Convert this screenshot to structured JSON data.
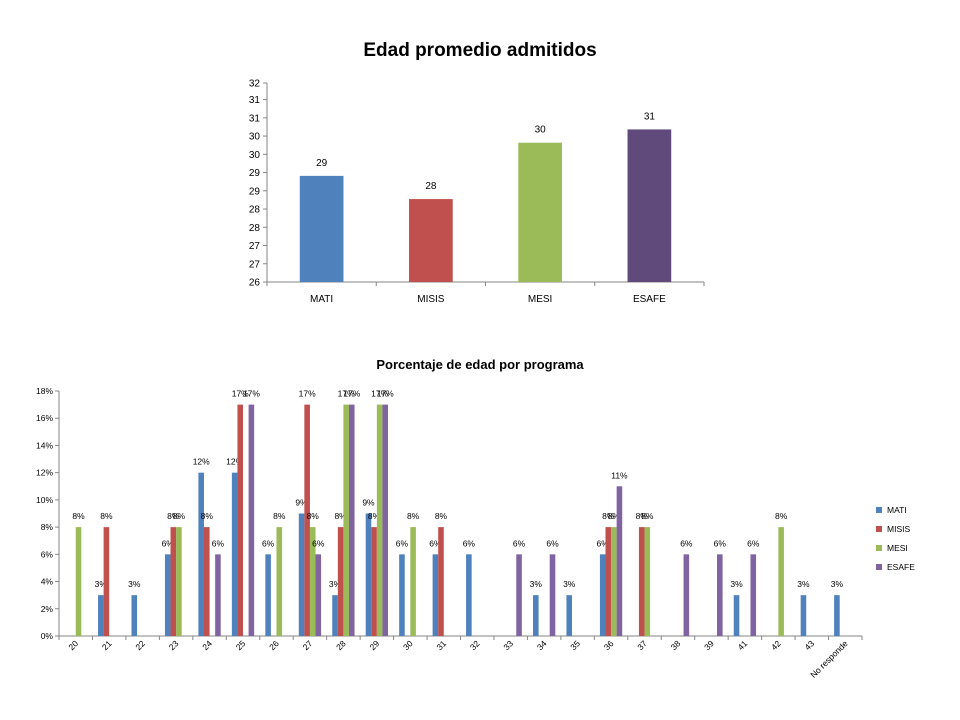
{
  "chart_data": [
    {
      "type": "bar",
      "title": "Edad promedio admitidos",
      "categories": [
        "MATI",
        "MISIS",
        "MESI",
        "ESAFE"
      ],
      "values": [
        29.2,
        28.5,
        30.2,
        30.6
      ],
      "data_labels": [
        "29",
        "28",
        "30",
        "31"
      ],
      "colors": [
        "#4f81bd",
        "#c0504d",
        "#9bbb59",
        "#604a7b"
      ],
      "ylim": [
        26,
        32
      ],
      "y_ticks": [
        26,
        26.55,
        27.1,
        27.65,
        28.2,
        28.75,
        29.3,
        29.85,
        30.4,
        30.95,
        31.5,
        32
      ],
      "y_tick_labels": [
        "26",
        "27",
        "27",
        "28",
        "28",
        "29",
        "29",
        "30",
        "30",
        "31",
        "31",
        "32"
      ],
      "legend": "none",
      "grid": false
    },
    {
      "type": "bar",
      "title": "Porcentaje de edad por programa",
      "categories": [
        "20",
        "21",
        "22",
        "23",
        "24",
        "25",
        "26",
        "27",
        "28",
        "29",
        "30",
        "31",
        "32",
        "33",
        "34",
        "35",
        "36",
        "37",
        "38",
        "39",
        "41",
        "42",
        "43",
        "No responde"
      ],
      "series": [
        {
          "name": "MATI",
          "color": "#4f81bd",
          "values": [
            null,
            3,
            3,
            6,
            12,
            12,
            6,
            9,
            3,
            9,
            6,
            6,
            6,
            null,
            3,
            3,
            6,
            null,
            null,
            null,
            3,
            null,
            3,
            3
          ]
        },
        {
          "name": "MISIS",
          "color": "#c0504d",
          "values": [
            null,
            8,
            null,
            8,
            8,
            17,
            null,
            17,
            8,
            8,
            null,
            8,
            null,
            null,
            null,
            null,
            8,
            8,
            null,
            null,
            null,
            null,
            null,
            null
          ]
        },
        {
          "name": "MESI",
          "color": "#9bbb59",
          "values": [
            8,
            null,
            null,
            8,
            null,
            null,
            8,
            8,
            17,
            17,
            8,
            null,
            null,
            null,
            null,
            null,
            8,
            8,
            null,
            null,
            null,
            8,
            null,
            null
          ]
        },
        {
          "name": "ESAFE",
          "color": "#8064a2",
          "values": [
            null,
            null,
            null,
            null,
            6,
            17,
            null,
            6,
            17,
            17,
            null,
            null,
            null,
            6,
            6,
            null,
            11,
            null,
            6,
            6,
            6,
            null,
            null,
            null
          ]
        }
      ],
      "ylim": [
        0,
        18
      ],
      "y_ticks": [
        0,
        2,
        4,
        6,
        8,
        10,
        12,
        14,
        16,
        18
      ],
      "y_tick_labels": [
        "0%",
        "2%",
        "4%",
        "6%",
        "8%",
        "10%",
        "12%",
        "14%",
        "16%",
        "18%"
      ],
      "value_suffix": "%",
      "legend": "right",
      "grid": false
    }
  ]
}
